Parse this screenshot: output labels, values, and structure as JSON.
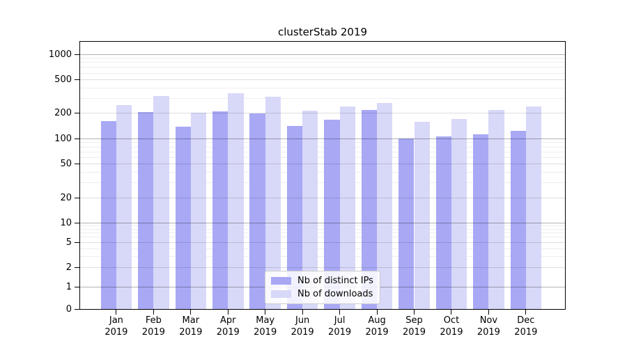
{
  "chart_data": {
    "type": "bar",
    "title": "clusterStab 2019",
    "xlabel": "",
    "ylabel": "",
    "yscale": "symlog",
    "grid": "both",
    "legend_position": "lower center",
    "categories": [
      "Jan",
      "Feb",
      "Mar",
      "Apr",
      "May",
      "Jun",
      "Jul",
      "Aug",
      "Sep",
      "Oct",
      "Nov",
      "Dec"
    ],
    "category_year": "2019",
    "yticks": [
      0,
      1,
      2,
      5,
      10,
      20,
      50,
      100,
      200,
      500,
      1000
    ],
    "ylim": [
      0,
      1500
    ],
    "series": [
      {
        "name": "Nb of distinct IPs",
        "color": "#a8a8f5",
        "values": [
          162,
          207,
          140,
          210,
          200,
          143,
          167,
          220,
          100,
          107,
          113,
          123
        ]
      },
      {
        "name": "Nb of downloads",
        "color": "#d8d8f8",
        "values": [
          250,
          320,
          202,
          345,
          315,
          217,
          240,
          265,
          158,
          172,
          218,
          240
        ]
      }
    ]
  },
  "colors": {
    "major_grid": "rgba(0,0,0,0.30)",
    "mid_grid": "rgba(0,0,0,0.13)",
    "minor_grid": "rgba(0,0,0,0.07)",
    "axis": "#000000"
  }
}
